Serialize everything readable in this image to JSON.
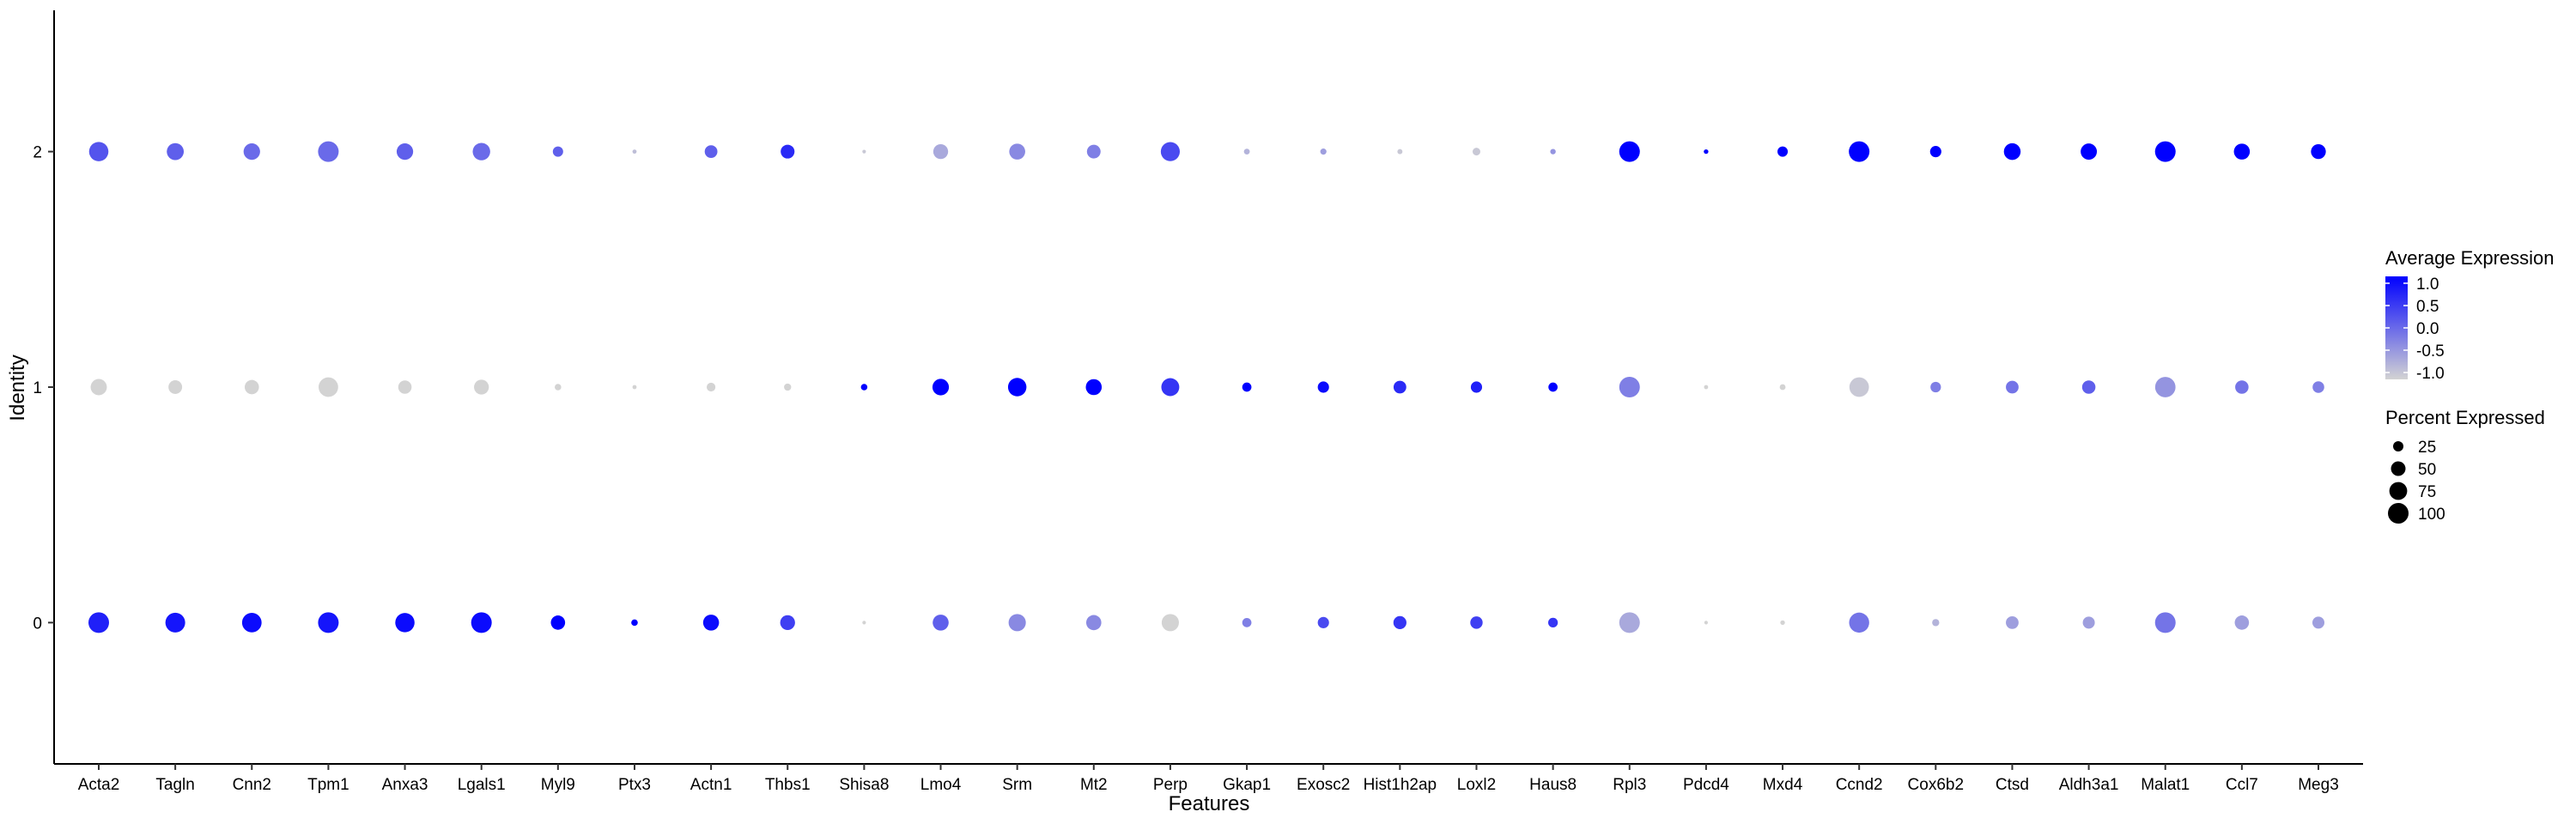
{
  "chart_data": {
    "type": "dotplot",
    "xlabel": "Features",
    "ylabel": "Identity",
    "categories": [
      "Acta2",
      "Tagln",
      "Cnn2",
      "Tpm1",
      "Anxa3",
      "Lgals1",
      "Myl9",
      "Ptx3",
      "Actn1",
      "Thbs1",
      "Shisa8",
      "Lmo4",
      "Srm",
      "Mt2",
      "Perp",
      "Gkap1",
      "Exosc2",
      "Hist1h2ap",
      "Loxl2",
      "Haus8",
      "Rpl3",
      "Pdcd4",
      "Mxd4",
      "Ccnd2",
      "Cox6b2",
      "Ctsd",
      "Aldh3a1",
      "Malat1",
      "Ccl7",
      "Meg3"
    ],
    "identities": [
      "0",
      "1",
      "2"
    ],
    "ylim": [
      -0.6,
      2.6
    ],
    "color_scale": {
      "low": "#d3d3d3",
      "high": "#0000ff",
      "min": -1.0,
      "max": 1.0
    },
    "size_scale": {
      "min": 0,
      "max": 100
    },
    "series": [
      {
        "identity": "2",
        "avg_exp": [
          0.2,
          0.1,
          0.0,
          0.0,
          0.1,
          0.0,
          0.1,
          -0.8,
          0.1,
          0.6,
          -0.9,
          -0.6,
          -0.3,
          -0.2,
          0.3,
          -0.7,
          -0.5,
          -0.9,
          -0.9,
          -0.4,
          1.1,
          1.1,
          1.1,
          1.1,
          1.0,
          1.1,
          1.0,
          1.1,
          1.1,
          1.0
        ],
        "pct_exp": [
          88,
          68,
          64,
          100,
          64,
          72,
          25,
          4,
          38,
          45,
          3,
          52,
          60,
          44,
          85,
          8,
          9,
          6,
          14,
          7,
          100,
          5,
          25,
          100,
          30,
          66,
          62,
          100,
          60,
          52
        ]
      },
      {
        "identity": "1",
        "avg_exp": [
          -1.0,
          -1.0,
          -1.0,
          -1.0,
          -1.0,
          -1.0,
          -1.0,
          -1.0,
          -1.0,
          -1.0,
          1.1,
          1.1,
          1.1,
          1.1,
          0.5,
          1.0,
          0.9,
          0.6,
          0.7,
          1.0,
          -0.2,
          -1.0,
          -1.0,
          -0.9,
          -0.2,
          -0.1,
          0.1,
          -0.4,
          -0.1,
          -0.2
        ],
        "pct_exp": [
          62,
          44,
          48,
          90,
          42,
          52,
          10,
          4,
          18,
          12,
          10,
          64,
          80,
          60,
          76,
          20,
          30,
          38,
          30,
          20,
          100,
          4,
          8,
          90,
          26,
          38,
          42,
          98,
          42,
          32
        ]
      },
      {
        "identity": "0",
        "avg_exp": [
          0.7,
          0.8,
          0.9,
          0.8,
          0.9,
          0.9,
          1.0,
          1.1,
          0.9,
          0.4,
          -1.0,
          0.1,
          -0.3,
          -0.3,
          -1.0,
          -0.2,
          0.3,
          0.5,
          0.4,
          0.5,
          -0.6,
          -1.0,
          -1.0,
          -0.1,
          -0.7,
          -0.5,
          -0.5,
          -0.1,
          -0.5,
          -0.5
        ],
        "pct_exp": [
          100,
          92,
          90,
          100,
          88,
          100,
          48,
          10,
          60,
          52,
          3,
          60,
          70,
          54,
          70,
          20,
          30,
          40,
          36,
          22,
          100,
          3,
          5,
          95,
          12,
          38,
          34,
          100,
          48,
          34
        ]
      }
    ],
    "legend": {
      "placement": "right",
      "color_title": "Average Expression",
      "color_ticks": [
        "1.0",
        "0.5",
        "0.0",
        "-0.5",
        "-1.0"
      ],
      "size_title": "Percent Expressed",
      "size_ticks": [
        "25",
        "50",
        "75",
        "100"
      ]
    }
  }
}
